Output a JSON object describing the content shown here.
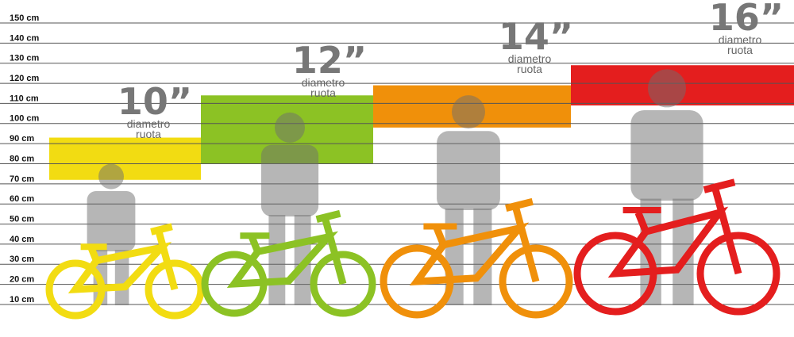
{
  "scale": {
    "ticks": [
      {
        "value": 150,
        "label": "150 cm"
      },
      {
        "value": 140,
        "label": "140 cm"
      },
      {
        "value": 130,
        "label": "130 cm"
      },
      {
        "value": 120,
        "label": "120 cm"
      },
      {
        "value": 110,
        "label": "110 cm"
      },
      {
        "value": 100,
        "label": "100 cm"
      },
      {
        "value": 90,
        "label": "90 cm"
      },
      {
        "value": 80,
        "label": "80 cm"
      },
      {
        "value": 70,
        "label": "70 cm"
      },
      {
        "value": 60,
        "label": "60 cm"
      },
      {
        "value": 50,
        "label": "50 cm"
      },
      {
        "value": 40,
        "label": "40 cm"
      },
      {
        "value": 30,
        "label": "30 cm"
      },
      {
        "value": 20,
        "label": "20 cm"
      },
      {
        "value": 10,
        "label": "10 cm"
      }
    ]
  },
  "groups": [
    {
      "size": "10”",
      "caption_1": "diametro",
      "caption_2": "ruota",
      "color": "#f2dc12",
      "range": [
        72,
        93
      ]
    },
    {
      "size": "12”",
      "caption_1": "diametro",
      "caption_2": "ruota",
      "color": "#8cc224",
      "range": [
        80,
        114
      ]
    },
    {
      "size": "14”",
      "caption_1": "diametro",
      "caption_2": "ruota",
      "color": "#f0900a",
      "range": [
        98,
        119
      ]
    },
    {
      "size": "16”",
      "caption_1": "diametro",
      "caption_2": "ruota",
      "color": "#e41e1e",
      "range": [
        109,
        129
      ]
    }
  ]
}
